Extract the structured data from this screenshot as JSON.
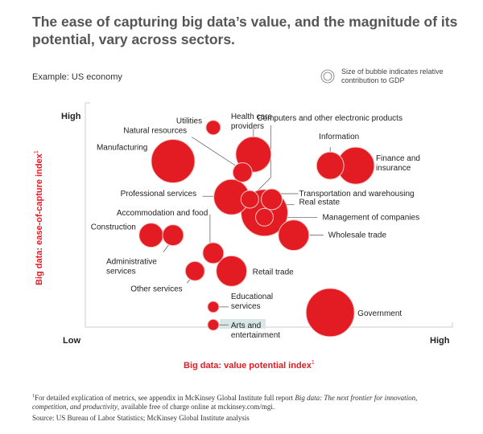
{
  "header": {
    "title": "The ease of capturing big data’s value, and the magnitude of its potential, vary across sectors.",
    "subtitle": "Example: US economy",
    "legend_text": "Size of bubble indicates relative contribution to GDP"
  },
  "colors": {
    "bubble": "#e31b23",
    "bubble_outline": "#f4c9c9",
    "axis": "#cccccc",
    "leader": "#555555",
    "axis_title": "#e31b23"
  },
  "chart_data": {
    "type": "scatter",
    "subtype": "bubble",
    "title": "The ease of capturing big data’s value, and the magnitude of its potential, vary across sectors.",
    "xlabel": "Big data: value potential index",
    "xlabel_sup": "1",
    "ylabel": "Big data: ease-of-capture index",
    "ylabel_sup": "1",
    "x_tick_labels": {
      "low": "Low",
      "high": "High"
    },
    "y_tick_labels": {
      "low": "Low",
      "high": "High"
    },
    "xlim": [
      0,
      100
    ],
    "ylim": [
      0,
      100
    ],
    "grid": false,
    "legend": "top-right",
    "size_meaning": "relative contribution to GDP",
    "points": [
      {
        "name": "Utilities",
        "label_lines": [
          "Utilities"
        ],
        "x": 35,
        "y": 89,
        "size": 9
      },
      {
        "name": "Manufacturing",
        "label_lines": [
          "Manufacturing"
        ],
        "x": 24,
        "y": 74,
        "size": 27
      },
      {
        "name": "Health care providers",
        "label_lines": [
          "Health care",
          "providers"
        ],
        "x": 46,
        "y": 77,
        "size": 22
      },
      {
        "name": "Natural resources",
        "label_lines": [
          "Natural resources"
        ],
        "x": 43,
        "y": 69,
        "size": 12
      },
      {
        "name": "Information",
        "label_lines": [
          "Information"
        ],
        "x": 67,
        "y": 72,
        "size": 17
      },
      {
        "name": "Finance and insurance",
        "label_lines": [
          "Finance and",
          "insurance"
        ],
        "x": 74,
        "y": 72,
        "size": 23
      },
      {
        "name": "Professional services",
        "label_lines": [
          "Professional services"
        ],
        "x": 40,
        "y": 58,
        "size": 22
      },
      {
        "name": "Real estate",
        "label_lines": [
          "Real estate"
        ],
        "x": 49,
        "y": 51,
        "size": 29
      },
      {
        "name": "Computers and other electronic products",
        "label_lines": [
          "Computers and other electronic products"
        ],
        "x": 45,
        "y": 57,
        "size": 11
      },
      {
        "name": "Transportation and warehousing",
        "label_lines": [
          "Transportation and warehousing"
        ],
        "x": 51,
        "y": 57,
        "size": 13
      },
      {
        "name": "Management of companies",
        "label_lines": [
          "Management of companies"
        ],
        "x": 49,
        "y": 49,
        "size": 11
      },
      {
        "name": "Wholesale trade",
        "label_lines": [
          "Wholesale trade"
        ],
        "x": 57,
        "y": 41,
        "size": 19
      },
      {
        "name": "Construction",
        "label_lines": [
          "Construction"
        ],
        "x": 18,
        "y": 41,
        "size": 15
      },
      {
        "name": "Administrative services",
        "label_lines": [
          "Administrative",
          "services"
        ],
        "x": 24,
        "y": 41,
        "size": 13
      },
      {
        "name": "Accommodation and food",
        "label_lines": [
          "Accommodation and food"
        ],
        "x": 35,
        "y": 33,
        "size": 13
      },
      {
        "name": "Retail trade",
        "label_lines": [
          "Retail trade"
        ],
        "x": 40,
        "y": 25,
        "size": 19
      },
      {
        "name": "Other services",
        "label_lines": [
          "Other services"
        ],
        "x": 30,
        "y": 25,
        "size": 12
      },
      {
        "name": "Educational services",
        "label_lines": [
          "Educational",
          "services"
        ],
        "x": 35,
        "y": 9,
        "size": 7
      },
      {
        "name": "Arts and entertainment",
        "label_lines": [
          "Arts and",
          "entertainment"
        ],
        "x": 35,
        "y": 1,
        "size": 7
      },
      {
        "name": "Government",
        "label_lines": [
          "Government"
        ],
        "x": 67,
        "y": 6.5,
        "size": 30
      }
    ]
  },
  "footer": {
    "footnote_marker": "1",
    "footnote_text_1": "For detailed explication of metrics, see appendix in McKinsey Global Institute full report ",
    "footnote_italic": "Big data: The next frontier for innovation, competition, and productivity",
    "footnote_text_2": ", available free of charge online at mckinsey.com/mgi.",
    "source": "Source: US Bureau of Labor Statistics; McKinsey Global Institute analysis"
  }
}
